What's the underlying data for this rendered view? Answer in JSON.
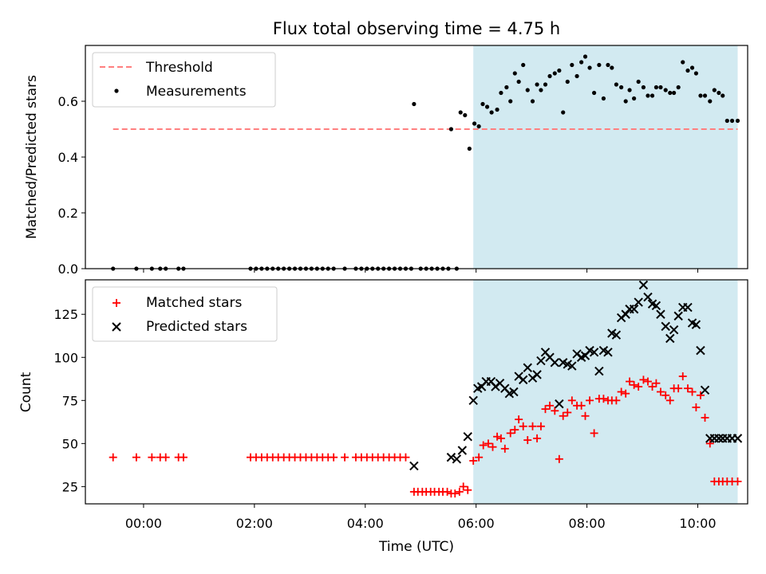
{
  "colors": {
    "shade": "#ADD8E6",
    "threshold": "#FF7F7F",
    "measurement": "#000000",
    "matched": "#FF0000",
    "predicted": "#000000"
  },
  "chart_data": [
    {
      "type": "scatter",
      "title": "Flux total observing time = 4.75 h",
      "xlabel": "",
      "ylabel": "Matched/Predicted stars",
      "x_unit": "hours (UTC), relative to 00:00",
      "xlim": [
        -1.05,
        10.9
      ],
      "ylim": [
        0.0,
        0.8
      ],
      "yticks": [
        0.0,
        0.2,
        0.4,
        0.6
      ],
      "ytick_labels": [
        "0.0",
        "0.2",
        "0.4",
        "0.6"
      ],
      "shaded_span": [
        5.95,
        10.72
      ],
      "grid": false,
      "legend": "upper left",
      "legend_entries": [
        "Threshold",
        "Measurements"
      ],
      "series": [
        {
          "name": "Threshold",
          "kind": "dashed-line",
          "x": [
            -0.55,
            10.72
          ],
          "y": [
            0.5,
            0.5
          ]
        },
        {
          "name": "Measurements",
          "kind": "points",
          "x": [
            -0.55,
            -0.13,
            0.15,
            0.3,
            0.4,
            0.63,
            0.72,
            1.93,
            2.03,
            2.13,
            2.23,
            2.33,
            2.43,
            2.53,
            2.63,
            2.73,
            2.83,
            2.93,
            3.03,
            3.13,
            3.23,
            3.33,
            3.43,
            3.63,
            3.83,
            3.93,
            4.03,
            4.13,
            4.23,
            4.33,
            4.43,
            4.53,
            4.63,
            4.73,
            4.83,
            4.88,
            5.0,
            5.1,
            5.2,
            5.3,
            5.4,
            5.5,
            5.55,
            5.65,
            5.72,
            5.8,
            5.88,
            5.97,
            6.05,
            6.12,
            6.2,
            6.28,
            6.38,
            6.45,
            6.55,
            6.62,
            6.7,
            6.77,
            6.85,
            6.93,
            7.02,
            7.1,
            7.17,
            7.25,
            7.33,
            7.42,
            7.5,
            7.57,
            7.65,
            7.73,
            7.82,
            7.9,
            7.97,
            8.05,
            8.13,
            8.22,
            8.3,
            8.38,
            8.45,
            8.53,
            8.62,
            8.7,
            8.77,
            8.85,
            8.93,
            9.02,
            9.1,
            9.18,
            9.25,
            9.33,
            9.42,
            9.5,
            9.57,
            9.65,
            9.73,
            9.82,
            9.9,
            9.97,
            10.05,
            10.13,
            10.22,
            10.3,
            10.38,
            10.45,
            10.53,
            10.62,
            10.72
          ],
          "y": [
            0.0,
            0.0,
            0.0,
            0.0,
            0.0,
            0.0,
            0.0,
            0.0,
            0.0,
            0.0,
            0.0,
            0.0,
            0.0,
            0.0,
            0.0,
            0.0,
            0.0,
            0.0,
            0.0,
            0.0,
            0.0,
            0.0,
            0.0,
            0.0,
            0.0,
            0.0,
            0.0,
            0.0,
            0.0,
            0.0,
            0.0,
            0.0,
            0.0,
            0.0,
            0.0,
            0.59,
            0.0,
            0.0,
            0.0,
            0.0,
            0.0,
            0.0,
            0.5,
            0.0,
            0.56,
            0.55,
            0.43,
            0.52,
            0.51,
            0.59,
            0.58,
            0.56,
            0.57,
            0.63,
            0.65,
            0.6,
            0.7,
            0.67,
            0.73,
            0.64,
            0.6,
            0.66,
            0.64,
            0.66,
            0.69,
            0.7,
            0.71,
            0.56,
            0.67,
            0.73,
            0.69,
            0.74,
            0.76,
            0.72,
            0.63,
            0.73,
            0.61,
            0.73,
            0.72,
            0.66,
            0.65,
            0.6,
            0.64,
            0.61,
            0.67,
            0.65,
            0.62,
            0.62,
            0.65,
            0.65,
            0.64,
            0.63,
            0.63,
            0.65,
            0.74,
            0.71,
            0.72,
            0.7,
            0.62,
            0.62,
            0.6,
            0.64,
            0.63,
            0.62,
            0.53,
            0.53,
            0.53
          ]
        }
      ]
    },
    {
      "type": "scatter",
      "title": "",
      "xlabel": "Time (UTC)",
      "ylabel": "Count",
      "x_unit": "hours (UTC), relative to 00:00",
      "xlim": [
        -1.05,
        10.9
      ],
      "ylim": [
        15,
        145
      ],
      "xticks": [
        0,
        2,
        4,
        6,
        8,
        10
      ],
      "xtick_labels": [
        "00:00",
        "02:00",
        "04:00",
        "06:00",
        "08:00",
        "10:00"
      ],
      "yticks": [
        25,
        50,
        75,
        100,
        125
      ],
      "ytick_labels": [
        "25",
        "50",
        "75",
        "100",
        "125"
      ],
      "shaded_span": [
        5.95,
        10.72
      ],
      "grid": false,
      "legend": "upper left",
      "legend_entries": [
        "Matched stars",
        "Predicted stars"
      ],
      "series": [
        {
          "name": "Matched stars",
          "marker": "plus",
          "x": [
            -0.55,
            -0.13,
            0.15,
            0.3,
            0.4,
            0.63,
            0.72,
            1.93,
            2.03,
            2.13,
            2.23,
            2.33,
            2.43,
            2.53,
            2.63,
            2.73,
            2.83,
            2.93,
            3.03,
            3.13,
            3.23,
            3.33,
            3.43,
            3.63,
            3.83,
            3.93,
            4.03,
            4.13,
            4.23,
            4.33,
            4.43,
            4.53,
            4.63,
            4.73,
            4.88,
            4.95,
            5.03,
            5.1,
            5.18,
            5.25,
            5.33,
            5.4,
            5.48,
            5.55,
            5.62,
            5.7,
            5.77,
            5.85,
            5.95,
            6.05,
            6.13,
            6.22,
            6.3,
            6.38,
            6.45,
            6.52,
            6.62,
            6.7,
            6.77,
            6.85,
            6.93,
            7.02,
            7.1,
            7.17,
            7.25,
            7.33,
            7.42,
            7.5,
            7.57,
            7.65,
            7.73,
            7.82,
            7.9,
            7.97,
            8.05,
            8.13,
            8.22,
            8.3,
            8.38,
            8.45,
            8.53,
            8.62,
            8.7,
            8.77,
            8.85,
            8.93,
            9.02,
            9.1,
            9.18,
            9.25,
            9.33,
            9.42,
            9.5,
            9.57,
            9.65,
            9.73,
            9.82,
            9.9,
            9.97,
            10.05,
            10.13,
            10.22,
            10.3,
            10.38,
            10.45,
            10.53,
            10.62,
            10.72
          ],
          "y": [
            42,
            42,
            42,
            42,
            42,
            42,
            42,
            42,
            42,
            42,
            42,
            42,
            42,
            42,
            42,
            42,
            42,
            42,
            42,
            42,
            42,
            42,
            42,
            42,
            42,
            42,
            42,
            42,
            42,
            42,
            42,
            42,
            42,
            42,
            22,
            22,
            22,
            22,
            22,
            22,
            22,
            22,
            22,
            21,
            21,
            22,
            25,
            23,
            40,
            42,
            49,
            50,
            48,
            54,
            53,
            47,
            56,
            58,
            64,
            60,
            52,
            60,
            53,
            60,
            70,
            72,
            69,
            41,
            66,
            68,
            75,
            72,
            72,
            66,
            75,
            56,
            76,
            76,
            75,
            75,
            75,
            80,
            79,
            86,
            84,
            83,
            87,
            86,
            83,
            85,
            80,
            78,
            75,
            82,
            82,
            89,
            82,
            80,
            71,
            78,
            65,
            50,
            28,
            28,
            28,
            28,
            28,
            28
          ],
          "note": "values read from plot"
        },
        {
          "name": "Predicted stars",
          "marker": "x",
          "x": [
            4.88,
            5.55,
            5.65,
            5.75,
            5.85,
            5.95,
            6.03,
            6.1,
            6.18,
            6.27,
            6.35,
            6.43,
            6.52,
            6.6,
            6.68,
            6.77,
            6.85,
            6.93,
            7.02,
            7.1,
            7.17,
            7.25,
            7.33,
            7.42,
            7.5,
            7.57,
            7.65,
            7.73,
            7.82,
            7.9,
            7.97,
            8.05,
            8.13,
            8.22,
            8.3,
            8.38,
            8.45,
            8.53,
            8.62,
            8.7,
            8.77,
            8.85,
            8.93,
            9.02,
            9.1,
            9.18,
            9.25,
            9.33,
            9.42,
            9.5,
            9.57,
            9.65,
            9.73,
            9.82,
            9.9,
            9.97,
            10.05,
            10.13,
            10.22,
            10.3,
            10.38,
            10.45,
            10.53,
            10.62,
            10.72
          ],
          "y": [
            37,
            42,
            41,
            46,
            54,
            75,
            82,
            83,
            86,
            86,
            83,
            85,
            82,
            79,
            80,
            89,
            87,
            94,
            88,
            90,
            98,
            103,
            100,
            97,
            73,
            97,
            96,
            95,
            102,
            100,
            101,
            104,
            103,
            92,
            104,
            103,
            114,
            113,
            123,
            125,
            128,
            128,
            132,
            142,
            135,
            131,
            130,
            125,
            118,
            111,
            116,
            124,
            129,
            129,
            120,
            119,
            104,
            81,
            53,
            53,
            53,
            53,
            53,
            53,
            53
          ],
          "note": "values read from plot"
        }
      ]
    }
  ]
}
